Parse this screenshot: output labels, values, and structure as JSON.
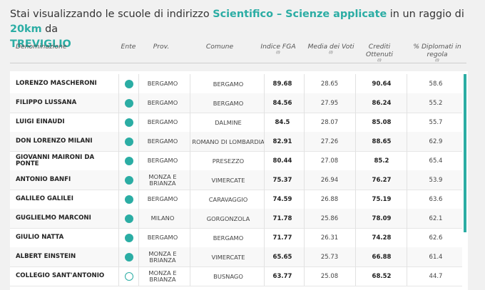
{
  "title": {
    "prefix": "Stai visualizzando le scuole di indirizzo",
    "indirizzo": "Scientifico – Scienze applicate",
    "middle": "in un raggio di",
    "raggio": "20km",
    "da": "da",
    "citta": "TREVIGLIO"
  },
  "headers": {
    "denominazione": "Denominazione",
    "ente": "Ente",
    "prov": "Prov.",
    "comune": "Comune",
    "fga": "Indice FGA",
    "fga_sub": "(i)",
    "media": "Media dei Voti",
    "media_sub": "(i)",
    "crediti": "Crediti Ottenuti",
    "crediti_sub": "(i)",
    "diplomati": "% Diplomati in regola",
    "diplomati_sub": "(i)"
  },
  "colors": {
    "accent": "#2bada4"
  },
  "rows": [
    {
      "name": "LORENZO MASCHERONI",
      "ente": "statale",
      "prov": "BERGAMO",
      "comune": "BERGAMO",
      "fga": "89.68",
      "media": "28.65",
      "crediti": "90.64",
      "diplomati": "58.6"
    },
    {
      "name": "FILIPPO LUSSANA",
      "ente": "statale",
      "prov": "BERGAMO",
      "comune": "BERGAMO",
      "fga": "84.56",
      "media": "27.95",
      "crediti": "86.24",
      "diplomati": "55.2"
    },
    {
      "name": "LUIGI EINAUDI",
      "ente": "statale",
      "prov": "BERGAMO",
      "comune": "DALMINE",
      "fga": "84.5",
      "media": "28.07",
      "crediti": "85.08",
      "diplomati": "55.7"
    },
    {
      "name": "DON LORENZO MILANI",
      "ente": "statale",
      "prov": "BERGAMO",
      "comune": "ROMANO DI LOMBARDIA",
      "fga": "82.91",
      "media": "27.26",
      "crediti": "88.65",
      "diplomati": "62.9"
    },
    {
      "name": "GIOVANNI MAIRONI DA PONTE",
      "ente": "statale",
      "prov": "BERGAMO",
      "comune": "PRESEZZO",
      "fga": "80.44",
      "media": "27.08",
      "crediti": "85.2",
      "diplomati": "65.4"
    },
    {
      "name": "ANTONIO BANFI",
      "ente": "statale",
      "prov": "MONZA E BRIANZA",
      "comune": "VIMERCATE",
      "fga": "75.37",
      "media": "26.94",
      "crediti": "76.27",
      "diplomati": "53.9"
    },
    {
      "name": "GALILEO GALILEI",
      "ente": "statale",
      "prov": "BERGAMO",
      "comune": "CARAVAGGIO",
      "fga": "74.59",
      "media": "26.88",
      "crediti": "75.19",
      "diplomati": "63.6"
    },
    {
      "name": "GUGLIELMO MARCONI",
      "ente": "statale",
      "prov": "MILANO",
      "comune": "GORGONZOLA",
      "fga": "71.78",
      "media": "25.86",
      "crediti": "78.09",
      "diplomati": "62.1"
    },
    {
      "name": "GIULIO NATTA",
      "ente": "statale",
      "prov": "BERGAMO",
      "comune": "BERGAMO",
      "fga": "71.77",
      "media": "26.31",
      "crediti": "74.28",
      "diplomati": "62.6"
    },
    {
      "name": "ALBERT EINSTEIN",
      "ente": "statale",
      "prov": "MONZA E BRIANZA",
      "comune": "VIMERCATE",
      "fga": "65.65",
      "media": "25.73",
      "crediti": "66.88",
      "diplomati": "61.4"
    },
    {
      "name": "COLLEGIO SANT'ANTONIO",
      "ente": "paritaria",
      "prov": "MONZA E BRIANZA",
      "comune": "BUSNAGO",
      "fga": "63.77",
      "media": "25.08",
      "crediti": "68.52",
      "diplomati": "44.7"
    }
  ]
}
